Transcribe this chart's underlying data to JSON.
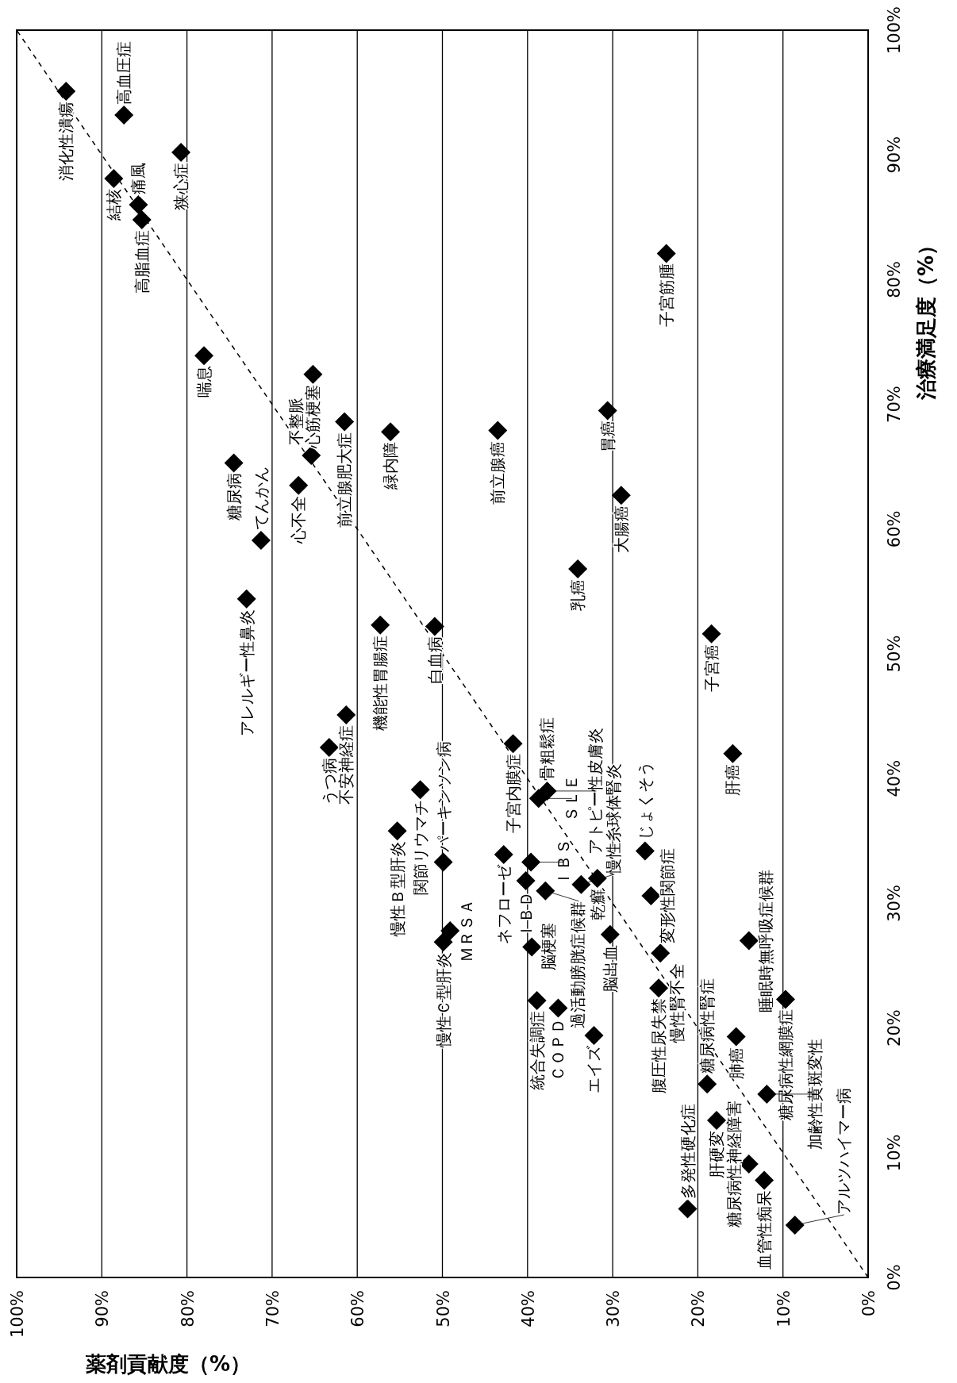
{
  "chart_data": {
    "type": "scatter",
    "xlabel": "薬剤貢献度（%）",
    "ylabel": "治療満足度（%）",
    "xlim": [
      100,
      0
    ],
    "ylim": [
      0,
      100
    ],
    "xticks": [
      {
        "value": 0,
        "label": "0%"
      },
      {
        "value": 10,
        "label": "10%"
      },
      {
        "value": 20,
        "label": "20%"
      },
      {
        "value": 30,
        "label": "30%"
      },
      {
        "value": 40,
        "label": "40%"
      },
      {
        "value": 50,
        "label": "50%"
      },
      {
        "value": 60,
        "label": "60%"
      },
      {
        "value": 70,
        "label": "70%"
      },
      {
        "value": 80,
        "label": "80%"
      },
      {
        "value": 90,
        "label": "90%"
      },
      {
        "value": 100,
        "label": "100%"
      }
    ],
    "yticks": [
      {
        "value": 0,
        "label": "0%"
      },
      {
        "value": 10,
        "label": "10%"
      },
      {
        "value": 20,
        "label": "20%"
      },
      {
        "value": 30,
        "label": "30%"
      },
      {
        "value": 40,
        "label": "40%"
      },
      {
        "value": 50,
        "label": "50%"
      },
      {
        "value": 60,
        "label": "60%"
      },
      {
        "value": 70,
        "label": "70%"
      },
      {
        "value": 80,
        "label": "80%"
      },
      {
        "value": 90,
        "label": "90%"
      },
      {
        "value": 100,
        "label": "100%"
      }
    ],
    "grid": "x",
    "series": [
      {
        "type": "line",
        "color": "#000000",
        "line_style": "dashed",
        "marker": "none",
        "x": [
          0,
          100
        ],
        "values": [
          0,
          100
        ]
      },
      {
        "color": "#000000",
        "marker": "diamond",
        "x": [
          94.2,
          87.4,
          80.7,
          88.6,
          85.7,
          85.3,
          23.7,
          78.0,
          65.2,
          61.5,
          56.1,
          43.5,
          30.6,
          65.4,
          74.5,
          66.9,
          29.0,
          71.3,
          34.1,
          73.0,
          57.3,
          50.9,
          18.4,
          61.3,
          63.3,
          41.7,
          15.9,
          52.6,
          55.3,
          49.9,
          42.8,
          37.7,
          39.6,
          38.7,
          37.9,
          33.7,
          31.8,
          26.2,
          25.5,
          49.9,
          49.1,
          40.2,
          39.5,
          38.9,
          36.4,
          30.3,
          24.6,
          24.4,
          14.0,
          32.2,
          15.5,
          18.9,
          9.7,
          17.8,
          11.9,
          14.0,
          21.2,
          12.2,
          8.6
        ],
        "values": [
          95.1,
          93.2,
          90.2,
          88.1,
          86.0,
          84.8,
          82.1,
          73.9,
          72.4,
          68.6,
          67.8,
          67.9,
          69.5,
          65.9,
          65.3,
          63.5,
          62.7,
          59.1,
          56.8,
          54.4,
          52.3,
          52.2,
          51.6,
          45.1,
          42.5,
          42.8,
          42.0,
          39.1,
          35.8,
          33.3,
          33.9,
          39.0,
          33.3,
          38.4,
          31.0,
          31.5,
          32.0,
          34.2,
          30.6,
          26.9,
          27.8,
          31.8,
          26.5,
          22.2,
          21.6,
          27.5,
          23.2,
          26.0,
          27.0,
          19.4,
          19.3,
          15.5,
          22.3,
          12.6,
          14.7,
          9.1,
          5.5,
          7.8,
          4.2
        ]
      }
    ],
    "annotations": [
      {
        "text": "消化性潰瘍",
        "x": 94.2,
        "y": 95.1
      },
      {
        "text": "高血圧症",
        "x": 87.4,
        "y": 93.2
      },
      {
        "text": "狭心症",
        "x": 80.7,
        "y": 90.2
      },
      {
        "text": "結核",
        "x": 88.6,
        "y": 88.1
      },
      {
        "text": "痛風",
        "x": 85.7,
        "y": 86.0
      },
      {
        "text": "高脂血症",
        "x": 85.3,
        "y": 84.8
      },
      {
        "text": "子宮筋腫",
        "x": 23.7,
        "y": 82.1
      },
      {
        "text": "喘息",
        "x": 78.0,
        "y": 73.9
      },
      {
        "text": "心筋梗塞",
        "x": 65.2,
        "y": 72.4
      },
      {
        "text": "前立腺肥大症",
        "x": 61.5,
        "y": 68.6
      },
      {
        "text": "緑内障",
        "x": 56.1,
        "y": 67.8
      },
      {
        "text": "前立腺癌",
        "x": 43.5,
        "y": 67.9
      },
      {
        "text": "胃癌",
        "x": 30.6,
        "y": 69.5
      },
      {
        "text": "不整脈",
        "x": 65.4,
        "y": 65.9
      },
      {
        "text": "糖尿病",
        "x": 74.5,
        "y": 65.3
      },
      {
        "text": "心不全",
        "x": 66.9,
        "y": 63.5
      },
      {
        "text": "大腸癌",
        "x": 29.0,
        "y": 62.7
      },
      {
        "text": "てんかん",
        "x": 71.3,
        "y": 59.1
      },
      {
        "text": "乳癌",
        "x": 34.1,
        "y": 56.8
      },
      {
        "text": "アレルギー性鼻炎",
        "x": 73.0,
        "y": 54.4
      },
      {
        "text": "機能性胃腸症",
        "x": 57.3,
        "y": 52.3
      },
      {
        "text": "白血病",
        "x": 50.9,
        "y": 52.2
      },
      {
        "text": "子宮癌",
        "x": 18.4,
        "y": 51.6
      },
      {
        "text": "不安神経症",
        "x": 61.3,
        "y": 45.1
      },
      {
        "text": "うつ病",
        "x": 63.3,
        "y": 42.5
      },
      {
        "text": "子宮内膜症",
        "x": 41.7,
        "y": 42.8
      },
      {
        "text": "肝癌",
        "x": 15.9,
        "y": 42.0
      },
      {
        "text": "関節リウマチ",
        "x": 52.6,
        "y": 39.1
      },
      {
        "text": "慢性Ｂ型肝炎",
        "x": 55.3,
        "y": 35.8
      },
      {
        "text": "パーキンソン病",
        "x": 49.9,
        "y": 33.3
      },
      {
        "text": "ネフローゼ",
        "x": 42.8,
        "y": 33.9
      },
      {
        "text": "骨粗鬆症",
        "x": 37.7,
        "y": 39.0
      },
      {
        "text": "ＩＢＳ",
        "x": 39.6,
        "y": 33.3
      },
      {
        "text": "ＳＬＥ",
        "x": 38.7,
        "y": 38.4
      },
      {
        "text": "アトピー性皮膚炎",
        "x": 37.7,
        "y": 39.0
      },
      {
        "text": "過活動膀胱症候群",
        "x": 37.9,
        "y": 31.0
      },
      {
        "text": "慢性糸球体腎炎",
        "x": 33.7,
        "y": 31.5
      },
      {
        "text": "乾癬",
        "x": 31.8,
        "y": 32.0
      },
      {
        "text": "じょくそう",
        "x": 26.2,
        "y": 34.2
      },
      {
        "text": "変形性関節症",
        "x": 25.5,
        "y": 30.6
      },
      {
        "text": "慢性Ｃ型肝炎",
        "x": 49.9,
        "y": 26.9
      },
      {
        "text": "ＭＲＳＡ",
        "x": 49.1,
        "y": 27.8
      },
      {
        "text": "ＩＢＤ",
        "x": 40.2,
        "y": 31.8
      },
      {
        "text": "脳梗塞",
        "x": 39.5,
        "y": 26.5
      },
      {
        "text": "統合失調症",
        "x": 38.9,
        "y": 22.2
      },
      {
        "text": "ＣＯＰＤ",
        "x": 36.4,
        "y": 21.6
      },
      {
        "text": "脳出血",
        "x": 30.3,
        "y": 27.5
      },
      {
        "text": "腹圧性尿失禁",
        "x": 24.6,
        "y": 23.2
      },
      {
        "text": "慢性腎不全",
        "x": 24.4,
        "y": 26.0
      },
      {
        "text": "睡眠時無呼吸症候群",
        "x": 14.0,
        "y": 27.0
      },
      {
        "text": "エイズ",
        "x": 32.2,
        "y": 19.4
      },
      {
        "text": "肺癌",
        "x": 15.5,
        "y": 19.3
      },
      {
        "text": "糖尿病性腎症",
        "x": 18.9,
        "y": 15.5
      },
      {
        "text": "糖尿病性網膜症",
        "x": 9.7,
        "y": 22.3
      },
      {
        "text": "肝硬変",
        "x": 17.8,
        "y": 12.6
      },
      {
        "text": "加齢性黄斑変性",
        "x": 11.9,
        "y": 14.7
      },
      {
        "text": "糖尿病性神経障害",
        "x": 14.0,
        "y": 9.1
      },
      {
        "text": "多発性硬化症",
        "x": 21.2,
        "y": 5.5
      },
      {
        "text": "血管性痴呆",
        "x": 12.2,
        "y": 7.8
      },
      {
        "text": "アルツハイマー病",
        "x": 8.6,
        "y": 4.2
      }
    ]
  }
}
